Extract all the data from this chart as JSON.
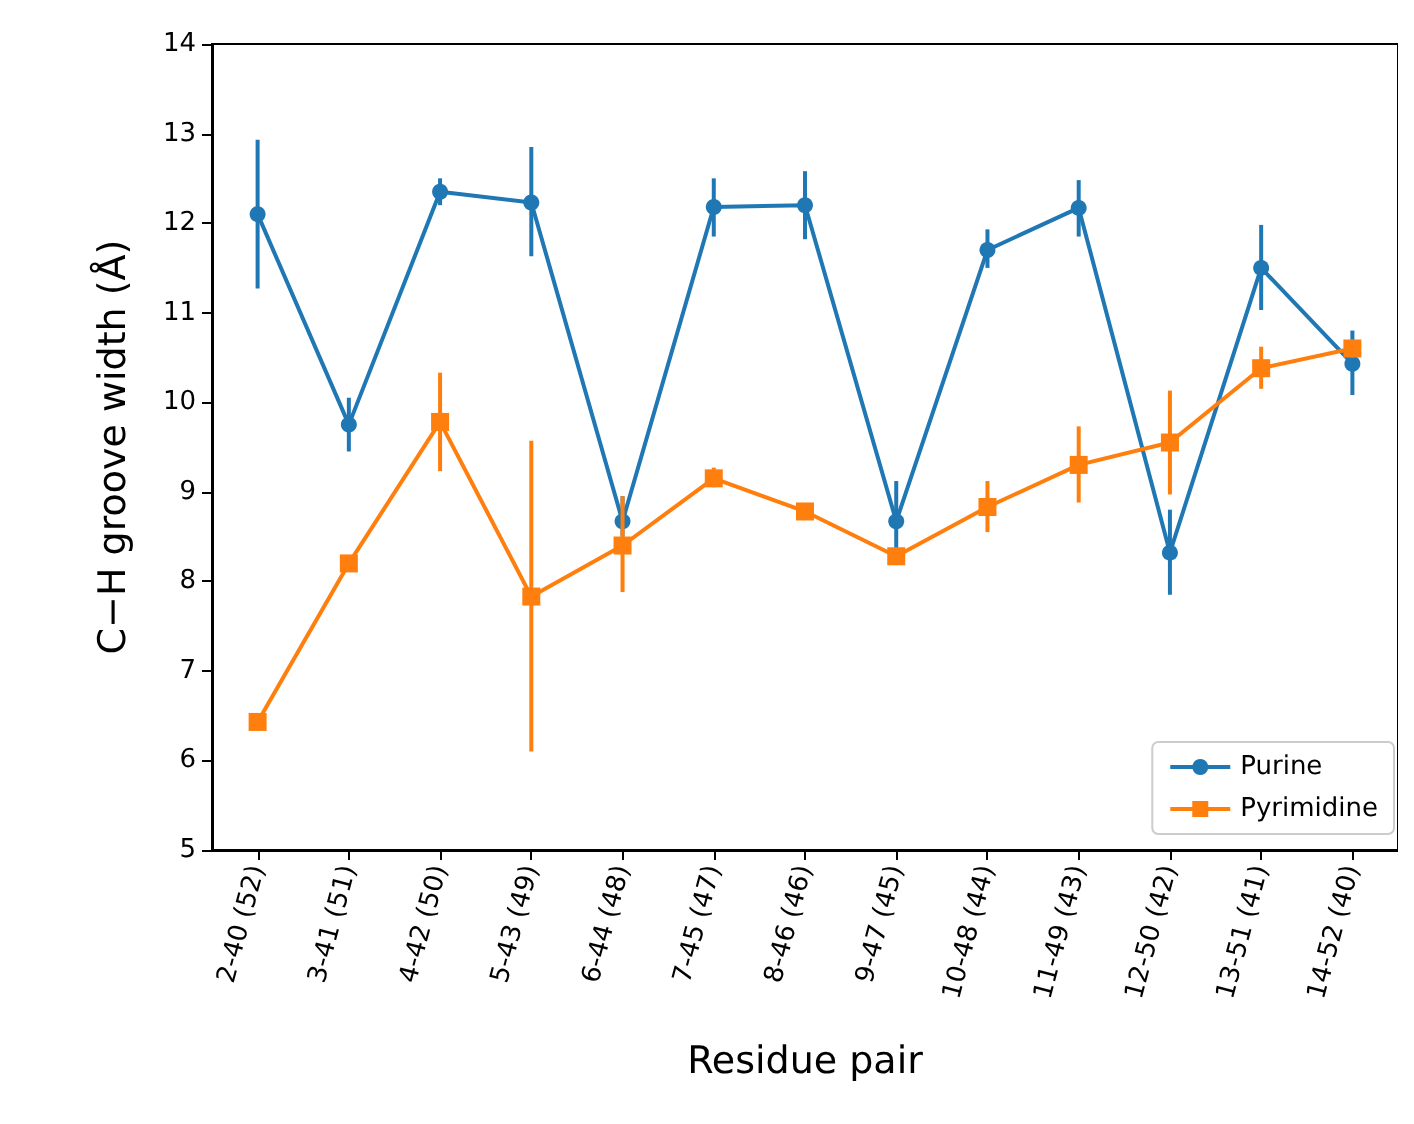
{
  "chart_data": {
    "type": "line",
    "xlabel": "Residue pair",
    "ylabel": "C−H groove width (Å)",
    "categories": [
      "2-40 (52)",
      "3-41 (51)",
      "4-42 (50)",
      "5-43 (49)",
      "6-44 (48)",
      "7-45 (47)",
      "8-46 (46)",
      "9-47 (45)",
      "10-48 (44)",
      "11-49 (43)",
      "12-50 (42)",
      "13-51 (41)",
      "14-52 (40)"
    ],
    "series": [
      {
        "name": "Purine",
        "color": "#1f77b4",
        "marker": "circle",
        "values": [
          12.1,
          9.75,
          12.35,
          12.23,
          8.67,
          12.18,
          12.2,
          8.67,
          11.7,
          12.17,
          8.32,
          11.5,
          10.43
        ],
        "errors": [
          [
            11.27,
            12.93
          ],
          [
            9.45,
            10.05
          ],
          [
            12.2,
            12.5
          ],
          [
            11.63,
            12.85
          ],
          [
            8.5,
            8.95
          ],
          [
            11.85,
            12.5
          ],
          [
            11.82,
            12.58
          ],
          [
            8.2,
            9.12
          ],
          [
            11.5,
            11.93
          ],
          [
            11.85,
            12.48
          ],
          [
            7.85,
            8.8
          ],
          [
            11.03,
            11.98
          ],
          [
            10.08,
            10.8
          ]
        ]
      },
      {
        "name": "Pyrimidine",
        "color": "#ff7f0e",
        "marker": "square",
        "values": [
          6.43,
          8.2,
          9.78,
          7.83,
          8.4,
          9.15,
          8.78,
          8.28,
          8.83,
          9.3,
          9.55,
          10.38,
          10.6
        ],
        "errors": [
          [
            6.37,
            6.5
          ],
          [
            8.15,
            8.25
          ],
          [
            9.23,
            10.33
          ],
          [
            6.1,
            9.57
          ],
          [
            7.88,
            8.95
          ],
          [
            9.05,
            9.27
          ],
          [
            8.7,
            8.86
          ],
          [
            8.22,
            8.35
          ],
          [
            8.55,
            9.12
          ],
          [
            8.88,
            9.73
          ],
          [
            8.97,
            10.13
          ],
          [
            10.15,
            10.62
          ],
          [
            10.5,
            10.7
          ]
        ]
      }
    ],
    "ylim": [
      5,
      14
    ],
    "yticks": [
      5,
      6,
      7,
      8,
      9,
      10,
      11,
      12,
      13,
      14
    ],
    "grid": false,
    "legend": "bottom right"
  }
}
